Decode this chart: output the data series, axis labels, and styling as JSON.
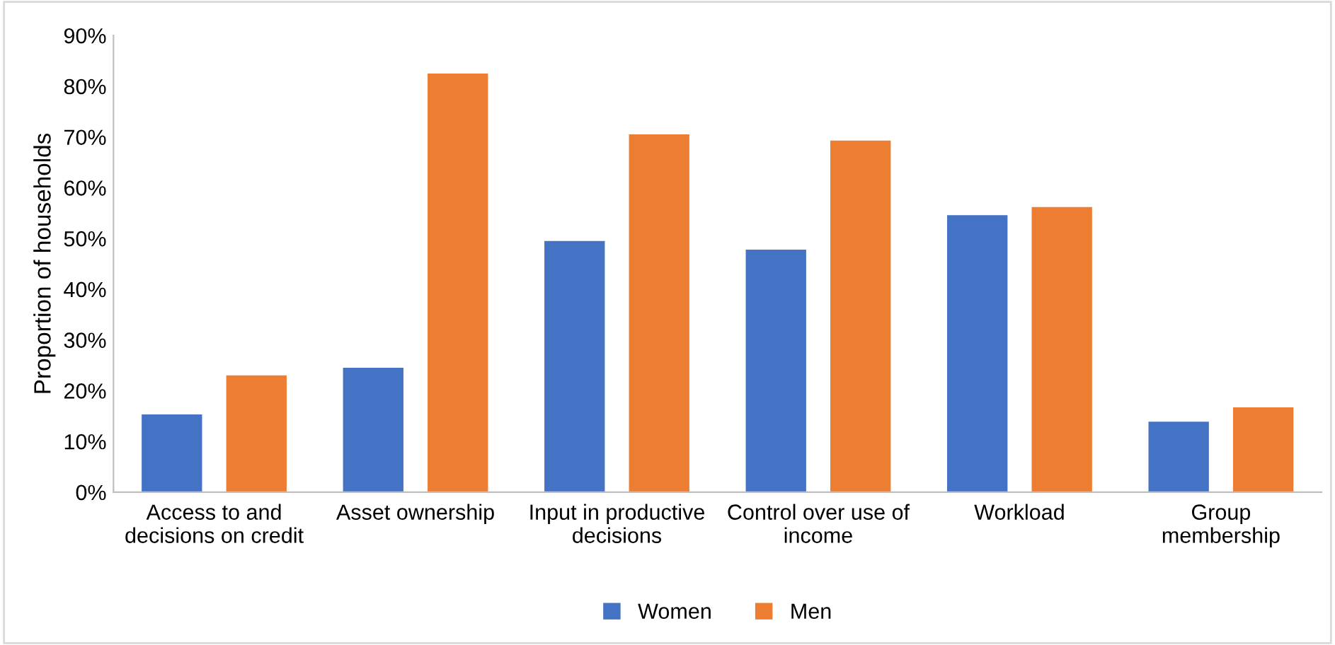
{
  "chart_data": {
    "type": "bar",
    "ylabel": "Proportion of households",
    "categories": [
      "Access to and\ndecisions on credit",
      "Asset ownership",
      "Input in productive\ndecisions",
      "Control over use of\nincome",
      "Workload",
      "Group\nmembership"
    ],
    "series": [
      {
        "name": "Women",
        "color": "#4472c4",
        "values": [
          15.3,
          24.5,
          49.5,
          47.8,
          54.6,
          13.9
        ]
      },
      {
        "name": "Men",
        "color": "#ed7d31",
        "values": [
          23.0,
          82.5,
          70.5,
          69.3,
          56.2,
          16.7
        ]
      }
    ],
    "ylim": [
      0,
      90
    ],
    "yticks": [
      {
        "value": 0,
        "label": "0%"
      },
      {
        "value": 10,
        "label": "10%"
      },
      {
        "value": 20,
        "label": "20%"
      },
      {
        "value": 30,
        "label": "30%"
      },
      {
        "value": 40,
        "label": "40%"
      },
      {
        "value": 50,
        "label": "50%"
      },
      {
        "value": 60,
        "label": "60%"
      },
      {
        "value": 70,
        "label": "70%"
      },
      {
        "value": 80,
        "label": "80%"
      },
      {
        "value": 90,
        "label": "90%"
      }
    ],
    "grid": false,
    "legend": "bottom"
  }
}
